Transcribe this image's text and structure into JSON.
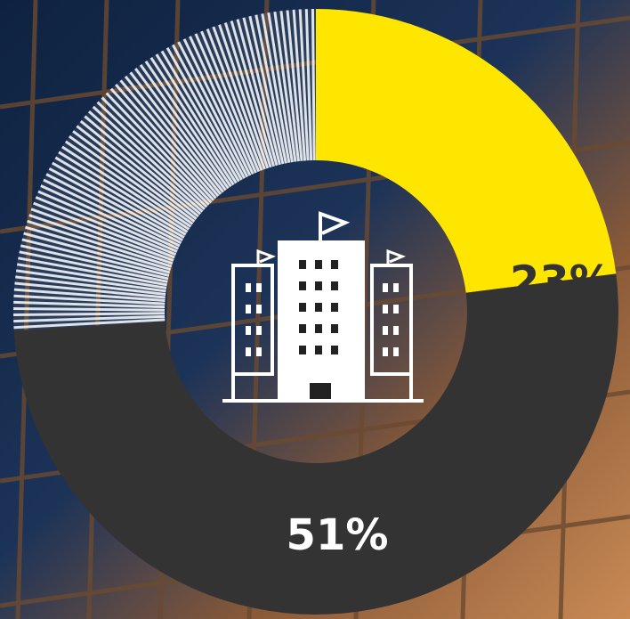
{
  "chart_data": {
    "type": "donut",
    "values": [
      23,
      51,
      26
    ],
    "value_labels": [
      "23%",
      "51%",
      null
    ],
    "colors": [
      "#ffe600",
      "#333333",
      "#ffffff"
    ],
    "styles": [
      "solid",
      "solid",
      "striped"
    ]
  }
}
